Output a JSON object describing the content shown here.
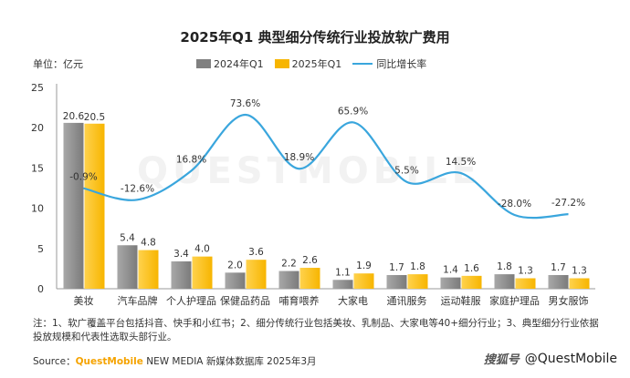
{
  "chart_data": {
    "type": "bar",
    "title": "2025年Q1 典型细分传统行业投放软广费用",
    "unit_label": "单位：亿元",
    "categories": [
      "美妆",
      "汽车品牌",
      "个人护理品",
      "保健品药品",
      "哺育喂养",
      "大家电",
      "通讯服务",
      "运动鞋服",
      "家庭护理品",
      "男女服饰"
    ],
    "series": [
      {
        "name": "2024年Q1",
        "color": "#808080",
        "values": [
          20.6,
          5.4,
          3.4,
          2.0,
          2.2,
          1.1,
          1.7,
          1.4,
          1.8,
          1.7
        ],
        "labels": [
          "20.6",
          "5.4",
          "3.4",
          "2.0",
          "2.2",
          "1.1",
          "1.7",
          "1.4",
          "1.8",
          "1.7"
        ]
      },
      {
        "name": "2025年Q1",
        "color": "#f7b500",
        "values": [
          20.5,
          4.8,
          4.0,
          3.6,
          2.6,
          1.9,
          1.8,
          1.6,
          1.3,
          1.3
        ],
        "labels": [
          "20.5",
          "4.8",
          "4.0",
          "3.6",
          "2.6",
          "1.9",
          "1.8",
          "1.6",
          "1.3",
          "1.3"
        ]
      }
    ],
    "line_series": {
      "name": "同比增长率",
      "color": "#3aa6dd",
      "values": [
        -0.9,
        -12.6,
        16.8,
        73.6,
        18.9,
        65.9,
        5.5,
        14.5,
        -28.0,
        -27.2
      ],
      "labels": [
        "-0.9%",
        "-12.6%",
        "16.8%",
        "73.6%",
        "18.9%",
        "65.9%",
        "5.5%",
        "14.5%",
        "-28.0%",
        "-27.2%"
      ]
    },
    "ylim": [
      0,
      25
    ],
    "yticks": [
      0,
      5,
      10,
      15,
      20,
      25
    ],
    "legend_position": "top",
    "grid": false
  },
  "note": "注：1、软广覆盖平台包括抖音、快手和小红书；2、细分传统行业包括美妆、乳制品、大家电等40+细分行业；3、典型细分行业依据投放规模和代表性选取头部行业。",
  "source": {
    "prefix": "Source：",
    "brand": "QuestMobile",
    "rest": " NEW MEDIA 新媒体数据库 2025年3月"
  },
  "watermark": "QUESTMOBILE",
  "brand": {
    "logo": "搜狐号",
    "handle": "@QuestMobile"
  }
}
